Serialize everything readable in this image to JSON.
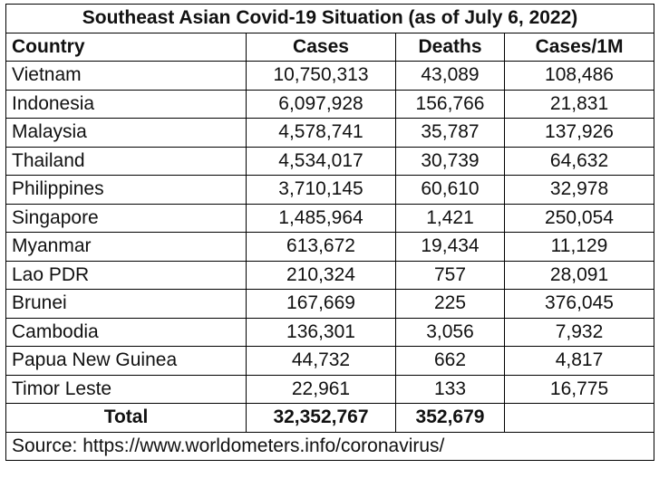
{
  "title": "Southeast Asian Covid-19 Situation (as of July 6, 2022)",
  "table": {
    "header": [
      "Country",
      "Cases",
      "Deaths",
      "Cases/1M"
    ],
    "rows": [
      [
        "Vietnam",
        "10,750,313",
        "43,089",
        "108,486"
      ],
      [
        "Indonesia",
        "6,097,928",
        "156,766",
        "21,831"
      ],
      [
        "Malaysia",
        "4,578,741",
        "35,787",
        "137,926"
      ],
      [
        "Thailand",
        "4,534,017",
        "30,739",
        "64,632"
      ],
      [
        "Philippines",
        "3,710,145",
        "60,610",
        "32,978"
      ],
      [
        "Singapore",
        "1,485,964",
        "1,421",
        "250,054"
      ],
      [
        "Myanmar",
        "613,672",
        "19,434",
        "11,129"
      ],
      [
        "Lao PDR",
        "210,324",
        "757",
        "28,091"
      ],
      [
        "Brunei",
        "167,669",
        "225",
        "376,045"
      ],
      [
        "Cambodia",
        "136,301",
        "3,056",
        "7,932"
      ],
      [
        "Papua New Guinea",
        "44,732",
        "662",
        "4,817"
      ],
      [
        "Timor Leste",
        "22,961",
        "133",
        "16,775"
      ]
    ],
    "total": [
      "Total",
      "32,352,767",
      "352,679"
    ]
  },
  "source": "Source: https://www.worldometers.info/coronavirus/"
}
